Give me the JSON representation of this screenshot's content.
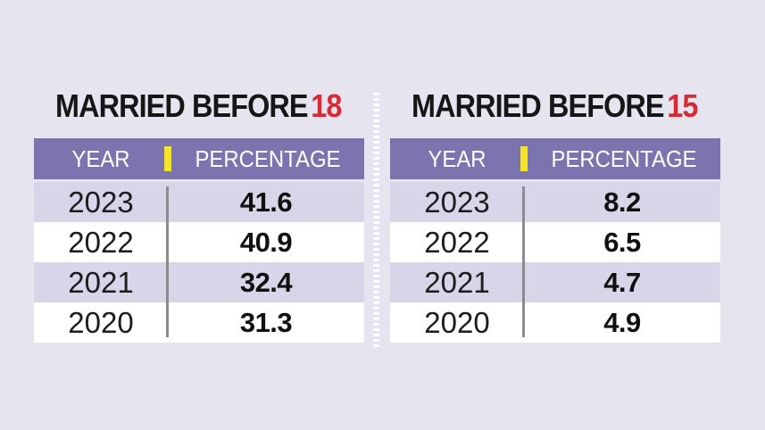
{
  "page": {
    "background_color": "#e6e4ef"
  },
  "colors": {
    "header_bg": "#7b74af",
    "row_alt_bg": "#d8d5e8",
    "row_bg": "#ffffff",
    "title_red": "#d42b35",
    "yellow_bar": "#f5e427",
    "divider_gray": "#8b8b90",
    "header_text": "#ffffff",
    "body_text": "#1c1c1c"
  },
  "tables": [
    {
      "title_prefix": "MARRIED BEFORE",
      "title_number": "18",
      "columns": {
        "year": "YEAR",
        "percentage": "PERCENTAGE"
      },
      "rows": [
        {
          "year": "2023",
          "percentage": "41.6"
        },
        {
          "year": "2022",
          "percentage": "40.9"
        },
        {
          "year": "2021",
          "percentage": "32.4"
        },
        {
          "year": "2020",
          "percentage": "31.3"
        }
      ]
    },
    {
      "title_prefix": "MARRIED BEFORE",
      "title_number": "15",
      "columns": {
        "year": "YEAR",
        "percentage": "PERCENTAGE"
      },
      "rows": [
        {
          "year": "2023",
          "percentage": "8.2"
        },
        {
          "year": "2022",
          "percentage": "6.5"
        },
        {
          "year": "2021",
          "percentage": "4.7"
        },
        {
          "year": "2020",
          "percentage": "4.9"
        }
      ]
    }
  ],
  "chart_data": [
    {
      "type": "table",
      "title": "MARRIED BEFORE 18",
      "columns": [
        "YEAR",
        "PERCENTAGE"
      ],
      "rows": [
        [
          "2023",
          41.6
        ],
        [
          "2022",
          40.9
        ],
        [
          "2021",
          32.4
        ],
        [
          "2020",
          31.3
        ]
      ]
    },
    {
      "type": "table",
      "title": "MARRIED BEFORE 15",
      "columns": [
        "YEAR",
        "PERCENTAGE"
      ],
      "rows": [
        [
          "2023",
          8.2
        ],
        [
          "2022",
          6.5
        ],
        [
          "2021",
          4.7
        ],
        [
          "2020",
          4.9
        ]
      ]
    }
  ]
}
